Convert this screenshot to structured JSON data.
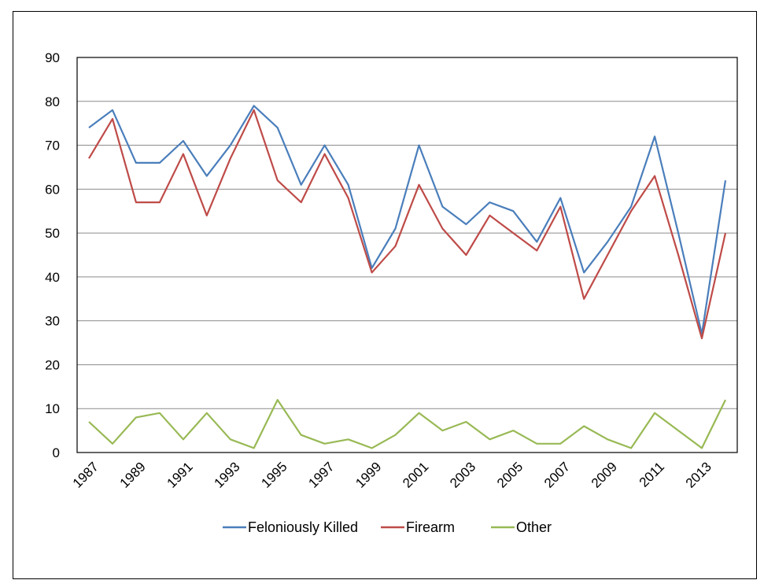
{
  "chart_data": {
    "type": "line",
    "title": "",
    "xlabel": "",
    "ylabel": "",
    "x": [
      1987,
      1988,
      1989,
      1990,
      1991,
      1992,
      1993,
      1994,
      1995,
      1996,
      1997,
      1998,
      1999,
      2000,
      2001,
      2002,
      2003,
      2004,
      2005,
      2006,
      2007,
      2008,
      2009,
      2010,
      2011,
      2012,
      2013,
      2014
    ],
    "x_tick_labels": [
      "1987",
      "1989",
      "1991",
      "1993",
      "1995",
      "1997",
      "1999",
      "2001",
      "2003",
      "2005",
      "2007",
      "2009",
      "2011",
      "2013"
    ],
    "y_tick_labels": [
      "0",
      "10",
      "20",
      "30",
      "40",
      "50",
      "60",
      "70",
      "80",
      "90"
    ],
    "ylim": [
      0,
      90
    ],
    "grid": "horizontal",
    "legend": "bottom",
    "series": [
      {
        "name": "Feloniously Killed",
        "color": "#4a7ebb",
        "values": [
          74,
          78,
          66,
          66,
          71,
          63,
          70,
          79,
          74,
          61,
          70,
          61,
          42,
          51,
          70,
          56,
          52,
          57,
          55,
          48,
          58,
          41,
          48,
          56,
          72,
          50,
          27,
          62
        ]
      },
      {
        "name": "Firearm",
        "color": "#be4b48",
        "values": [
          67,
          76,
          57,
          57,
          68,
          54,
          67,
          78,
          62,
          57,
          68,
          58,
          41,
          47,
          61,
          51,
          45,
          54,
          50,
          46,
          56,
          35,
          45,
          55,
          63,
          45,
          26,
          50
        ]
      },
      {
        "name": "Other",
        "color": "#98b954",
        "values": [
          7,
          2,
          8,
          9,
          3,
          9,
          3,
          1,
          12,
          4,
          2,
          3,
          1,
          4,
          9,
          5,
          7,
          3,
          5,
          2,
          2,
          6,
          3,
          1,
          9,
          5,
          1,
          12
        ]
      }
    ]
  }
}
